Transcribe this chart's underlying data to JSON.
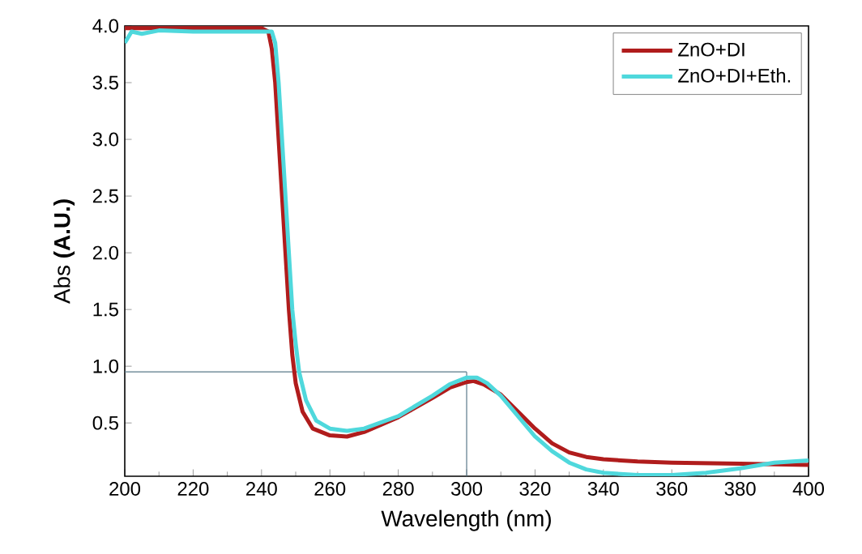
{
  "chart_data": {
    "type": "line",
    "xlabel": "Wavelength (nm)",
    "ylabel": "Abs   **(A.U.)**",
    "xlim": [
      200,
      400
    ],
    "ylim": [
      0.03,
      4.0
    ],
    "xticks": [
      200,
      220,
      240,
      260,
      280,
      300,
      320,
      340,
      360,
      380,
      400
    ],
    "yticks": [
      0.5,
      {
        "value": 1,
        "label": "1.0"
      },
      1.5,
      {
        "value": 2,
        "label": "2.0"
      },
      2.5,
      {
        "value": 3,
        "label": "3.0"
      },
      3.5,
      {
        "value": 4,
        "label": "4.0"
      }
    ],
    "legend": "top right",
    "grid": false,
    "marker": "none",
    "line_style": "solid",
    "ref_lines": [
      {
        "axis": "x",
        "value": 300,
        "color": "#5a7a8a"
      },
      {
        "axis": "y",
        "value": 0.95,
        "color": "#5a7a8a"
      }
    ],
    "series": [
      {
        "name": "ZnO+DI",
        "color": "#b01c1c",
        "x": [
          200,
          210,
          220,
          230,
          240,
          242,
          243,
          244,
          245,
          246,
          247,
          248,
          249,
          250,
          252,
          255,
          260,
          265,
          270,
          280,
          290,
          295,
          300,
          302,
          305,
          310,
          315,
          320,
          325,
          330,
          335,
          340,
          350,
          360,
          380,
          400
        ],
        "values": [
          3.98,
          3.98,
          3.98,
          3.98,
          3.98,
          3.95,
          3.8,
          3.5,
          3.0,
          2.5,
          2.0,
          1.5,
          1.1,
          0.85,
          0.6,
          0.45,
          0.39,
          0.38,
          0.42,
          0.55,
          0.72,
          0.81,
          0.86,
          0.87,
          0.84,
          0.75,
          0.6,
          0.45,
          0.32,
          0.24,
          0.2,
          0.18,
          0.16,
          0.15,
          0.14,
          0.13
        ]
      },
      {
        "name": "ZnO+DI+Eth.",
        "color": "#4fd8dc",
        "x": [
          200,
          202,
          205,
          210,
          220,
          230,
          240,
          243,
          244,
          245,
          246,
          247,
          248,
          249,
          250,
          251,
          253,
          256,
          260,
          265,
          270,
          280,
          290,
          295,
          300,
          303,
          306,
          310,
          315,
          320,
          325,
          330,
          335,
          340,
          350,
          360,
          370,
          380,
          390,
          400
        ],
        "values": [
          3.85,
          3.95,
          3.93,
          3.96,
          3.95,
          3.95,
          3.95,
          3.95,
          3.85,
          3.5,
          3.0,
          2.5,
          2.0,
          1.5,
          1.2,
          0.95,
          0.7,
          0.52,
          0.45,
          0.43,
          0.45,
          0.56,
          0.74,
          0.84,
          0.9,
          0.9,
          0.85,
          0.74,
          0.56,
          0.38,
          0.25,
          0.15,
          0.09,
          0.06,
          0.04,
          0.04,
          0.06,
          0.1,
          0.15,
          0.17
        ]
      }
    ]
  }
}
